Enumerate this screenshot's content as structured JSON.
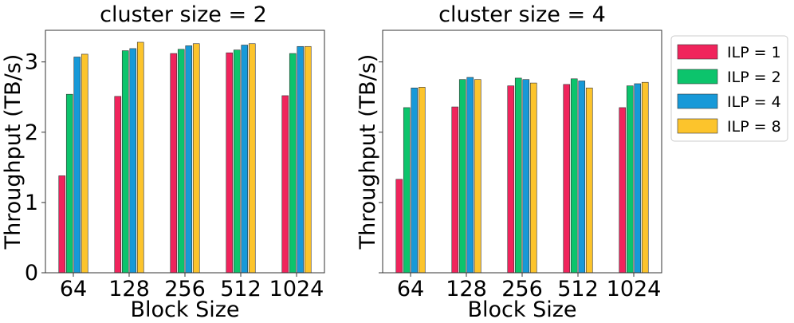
{
  "chart_data": [
    {
      "type": "bar",
      "title": "cluster size = 2",
      "xlabel": "Block Size",
      "ylabel": "Throughput (TB/s)",
      "categories": [
        "64",
        "128",
        "256",
        "512",
        "1024"
      ],
      "ylim": [
        0,
        3.45
      ],
      "yticks": [
        "0",
        "1",
        "2",
        "3"
      ],
      "series": [
        {
          "name": "ILP = 1",
          "values": [
            1.38,
            2.51,
            3.12,
            3.13,
            2.52
          ]
        },
        {
          "name": "ILP = 2",
          "values": [
            2.54,
            3.16,
            3.18,
            3.17,
            3.12
          ]
        },
        {
          "name": "ILP = 4",
          "values": [
            3.07,
            3.19,
            3.23,
            3.24,
            3.22
          ]
        },
        {
          "name": "ILP = 8",
          "values": [
            3.11,
            3.28,
            3.26,
            3.26,
            3.22
          ]
        }
      ]
    },
    {
      "type": "bar",
      "title": "cluster size = 4",
      "xlabel": "Block Size",
      "ylabel": "Throughput (TB/s)",
      "categories": [
        "64",
        "128",
        "256",
        "512",
        "1024"
      ],
      "ylim": [
        0,
        3.45
      ],
      "yticks": [
        "",
        "",
        "",
        ""
      ],
      "series": [
        {
          "name": "ILP = 1",
          "values": [
            1.33,
            2.36,
            2.66,
            2.68,
            2.35
          ]
        },
        {
          "name": "ILP = 2",
          "values": [
            2.35,
            2.75,
            2.77,
            2.76,
            2.66
          ]
        },
        {
          "name": "ILP = 4",
          "values": [
            2.63,
            2.78,
            2.75,
            2.73,
            2.69
          ]
        },
        {
          "name": "ILP = 8",
          "values": [
            2.64,
            2.75,
            2.7,
            2.63,
            2.71
          ]
        }
      ]
    }
  ],
  "legend": {
    "placement": "right",
    "items": [
      "ILP = 1",
      "ILP = 2",
      "ILP = 4",
      "ILP = 8"
    ]
  },
  "colors": [
    "#f0245c",
    "#0cc46c",
    "#1799d8",
    "#fcc42c"
  ]
}
